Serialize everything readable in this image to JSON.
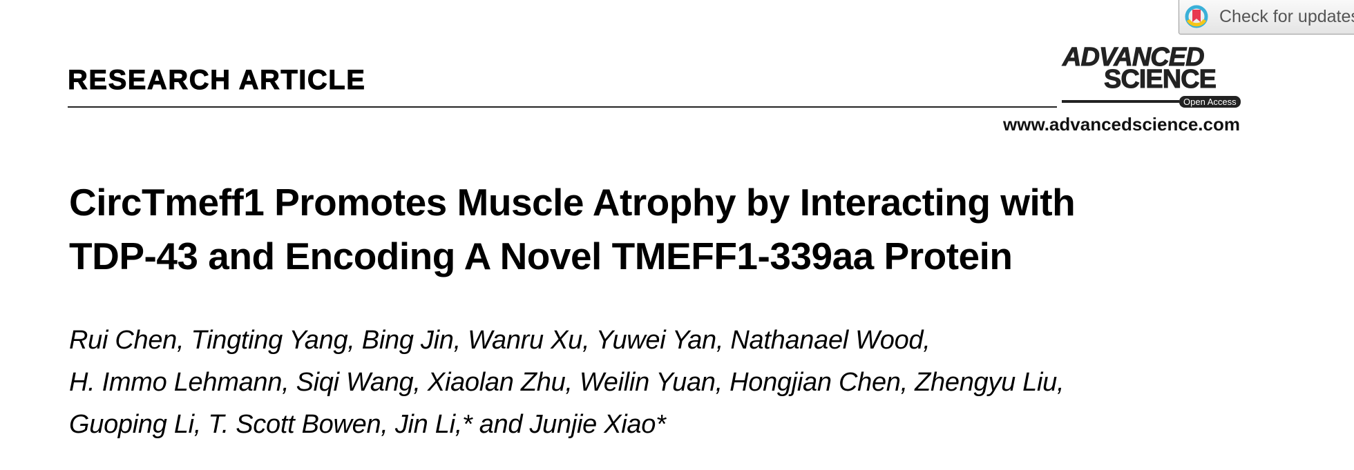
{
  "header": {
    "section_label": "RESEARCH ARTICLE",
    "journal_logo": {
      "line1": "ADVANCED",
      "line2": "SCIENCE",
      "badge": "Open Access"
    },
    "journal_url": "www.advancedscience.com",
    "check_updates": {
      "label": "Check for updates",
      "icon": "crossmark-bookmark-icon"
    }
  },
  "article": {
    "title_lines": [
      "CircTmeff1 Promotes Muscle Atrophy by Interacting with",
      "TDP-43 and Encoding A Novel TMEFF1-339aa Protein"
    ],
    "author_lines": [
      "Rui Chen, Tingting Yang, Bing Jin, Wanru Xu, Yuwei Yan, Nathanael Wood,",
      "H. Immo Lehmann, Siqi Wang, Xiaolan Zhu, Weilin Yuan, Hongjian Chen, Zhengyu Liu,",
      "Guoping Li, T. Scott Bowen, Jin Li,* and Junjie Xiao*"
    ]
  }
}
